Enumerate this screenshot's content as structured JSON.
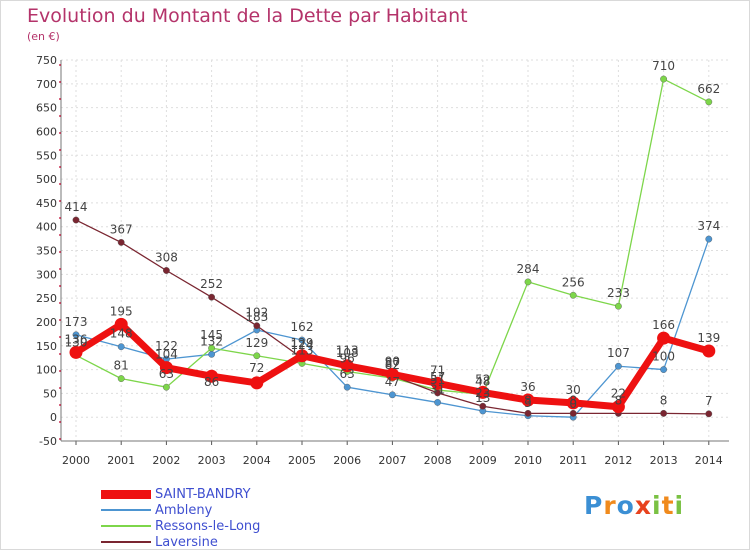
{
  "title": "Evolution du Montant de la Dette par Habitant",
  "subtitle": "(en €)",
  "logo_text": "Proxiti",
  "chart_data": {
    "type": "line",
    "title": "Evolution du Montant de la Dette par Habitant",
    "ylabel": "(en €)",
    "xlabel": "",
    "x": [
      "2000",
      "2001",
      "2002",
      "2003",
      "2004",
      "2005",
      "2006",
      "2007",
      "2008",
      "2009",
      "2010",
      "2011",
      "2012",
      "2013",
      "2014"
    ],
    "ylim": [
      -50,
      750
    ],
    "yticks": [
      -50,
      0,
      50,
      100,
      150,
      200,
      250,
      300,
      350,
      400,
      450,
      500,
      550,
      600,
      650,
      700,
      750
    ],
    "grid": true,
    "legend_position": "bottom-left",
    "series": [
      {
        "name": "SAINT-BANDRY",
        "color": "#ee1111",
        "values": [
          136,
          195,
          104,
          86,
          72,
          129,
          108,
          90,
          71,
          52,
          36,
          30,
          22,
          166,
          139
        ]
      },
      {
        "name": "Ambleny",
        "color": "#4d95d1",
        "values": [
          173,
          148,
          122,
          132,
          183,
          162,
          63,
          47,
          31,
          13,
          3,
          0,
          107,
          100,
          374
        ]
      },
      {
        "name": "Ressons-le-Long",
        "color": "#7dd64a",
        "values": [
          130,
          81,
          63,
          145,
          129,
          113,
          96,
          82,
          57,
          48,
          284,
          256,
          233,
          710,
          662
        ]
      },
      {
        "name": "Laversine",
        "color": "#7a2631",
        "values": [
          414,
          367,
          308,
          252,
          192,
          124,
          113,
          87,
          51,
          23,
          8,
          8,
          8,
          8,
          7
        ]
      }
    ]
  }
}
